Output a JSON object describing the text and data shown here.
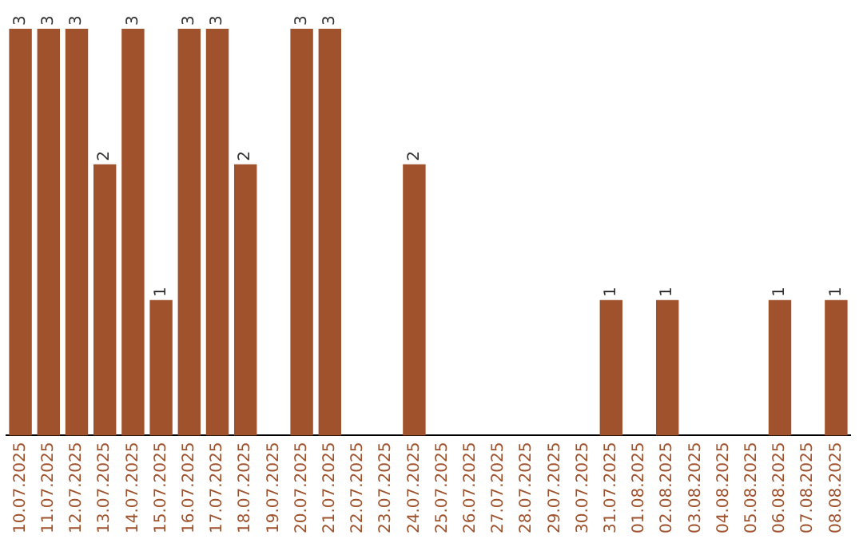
{
  "chart_data": {
    "type": "bar",
    "categories": [
      "10.07.2025",
      "11.07.2025",
      "12.07.2025",
      "13.07.2025",
      "14.07.2025",
      "15.07.2025",
      "16.07.2025",
      "17.07.2025",
      "18.07.2025",
      "19.07.2025",
      "20.07.2025",
      "21.07.2025",
      "22.07.2025",
      "23.07.2025",
      "24.07.2025",
      "25.07.2025",
      "26.07.2025",
      "27.07.2025",
      "28.07.2025",
      "29.07.2025",
      "30.07.2025",
      "31.07.2025",
      "01.08.2025",
      "02.08.2025",
      "03.08.2025",
      "04.08.2025",
      "05.08.2025",
      "06.08.2025",
      "07.08.2025",
      "08.08.2025"
    ],
    "values": [
      3,
      3,
      3,
      2,
      3,
      1,
      3,
      3,
      2,
      0,
      3,
      3,
      0,
      0,
      2,
      0,
      0,
      0,
      0,
      0,
      0,
      1,
      0,
      1,
      0,
      0,
      0,
      1,
      0,
      1
    ],
    "value_labels": [
      "3",
      "3",
      "3",
      "2",
      "3",
      "1",
      "3",
      "3",
      "2",
      null,
      "3",
      "3",
      null,
      null,
      "2",
      null,
      null,
      null,
      null,
      null,
      null,
      "1",
      null,
      "1",
      null,
      null,
      null,
      "1",
      null,
      "1"
    ],
    "color": "#a0522d",
    "ylim": [
      0,
      3
    ],
    "tick_labels": "x",
    "grid": false,
    "legend": false
  }
}
